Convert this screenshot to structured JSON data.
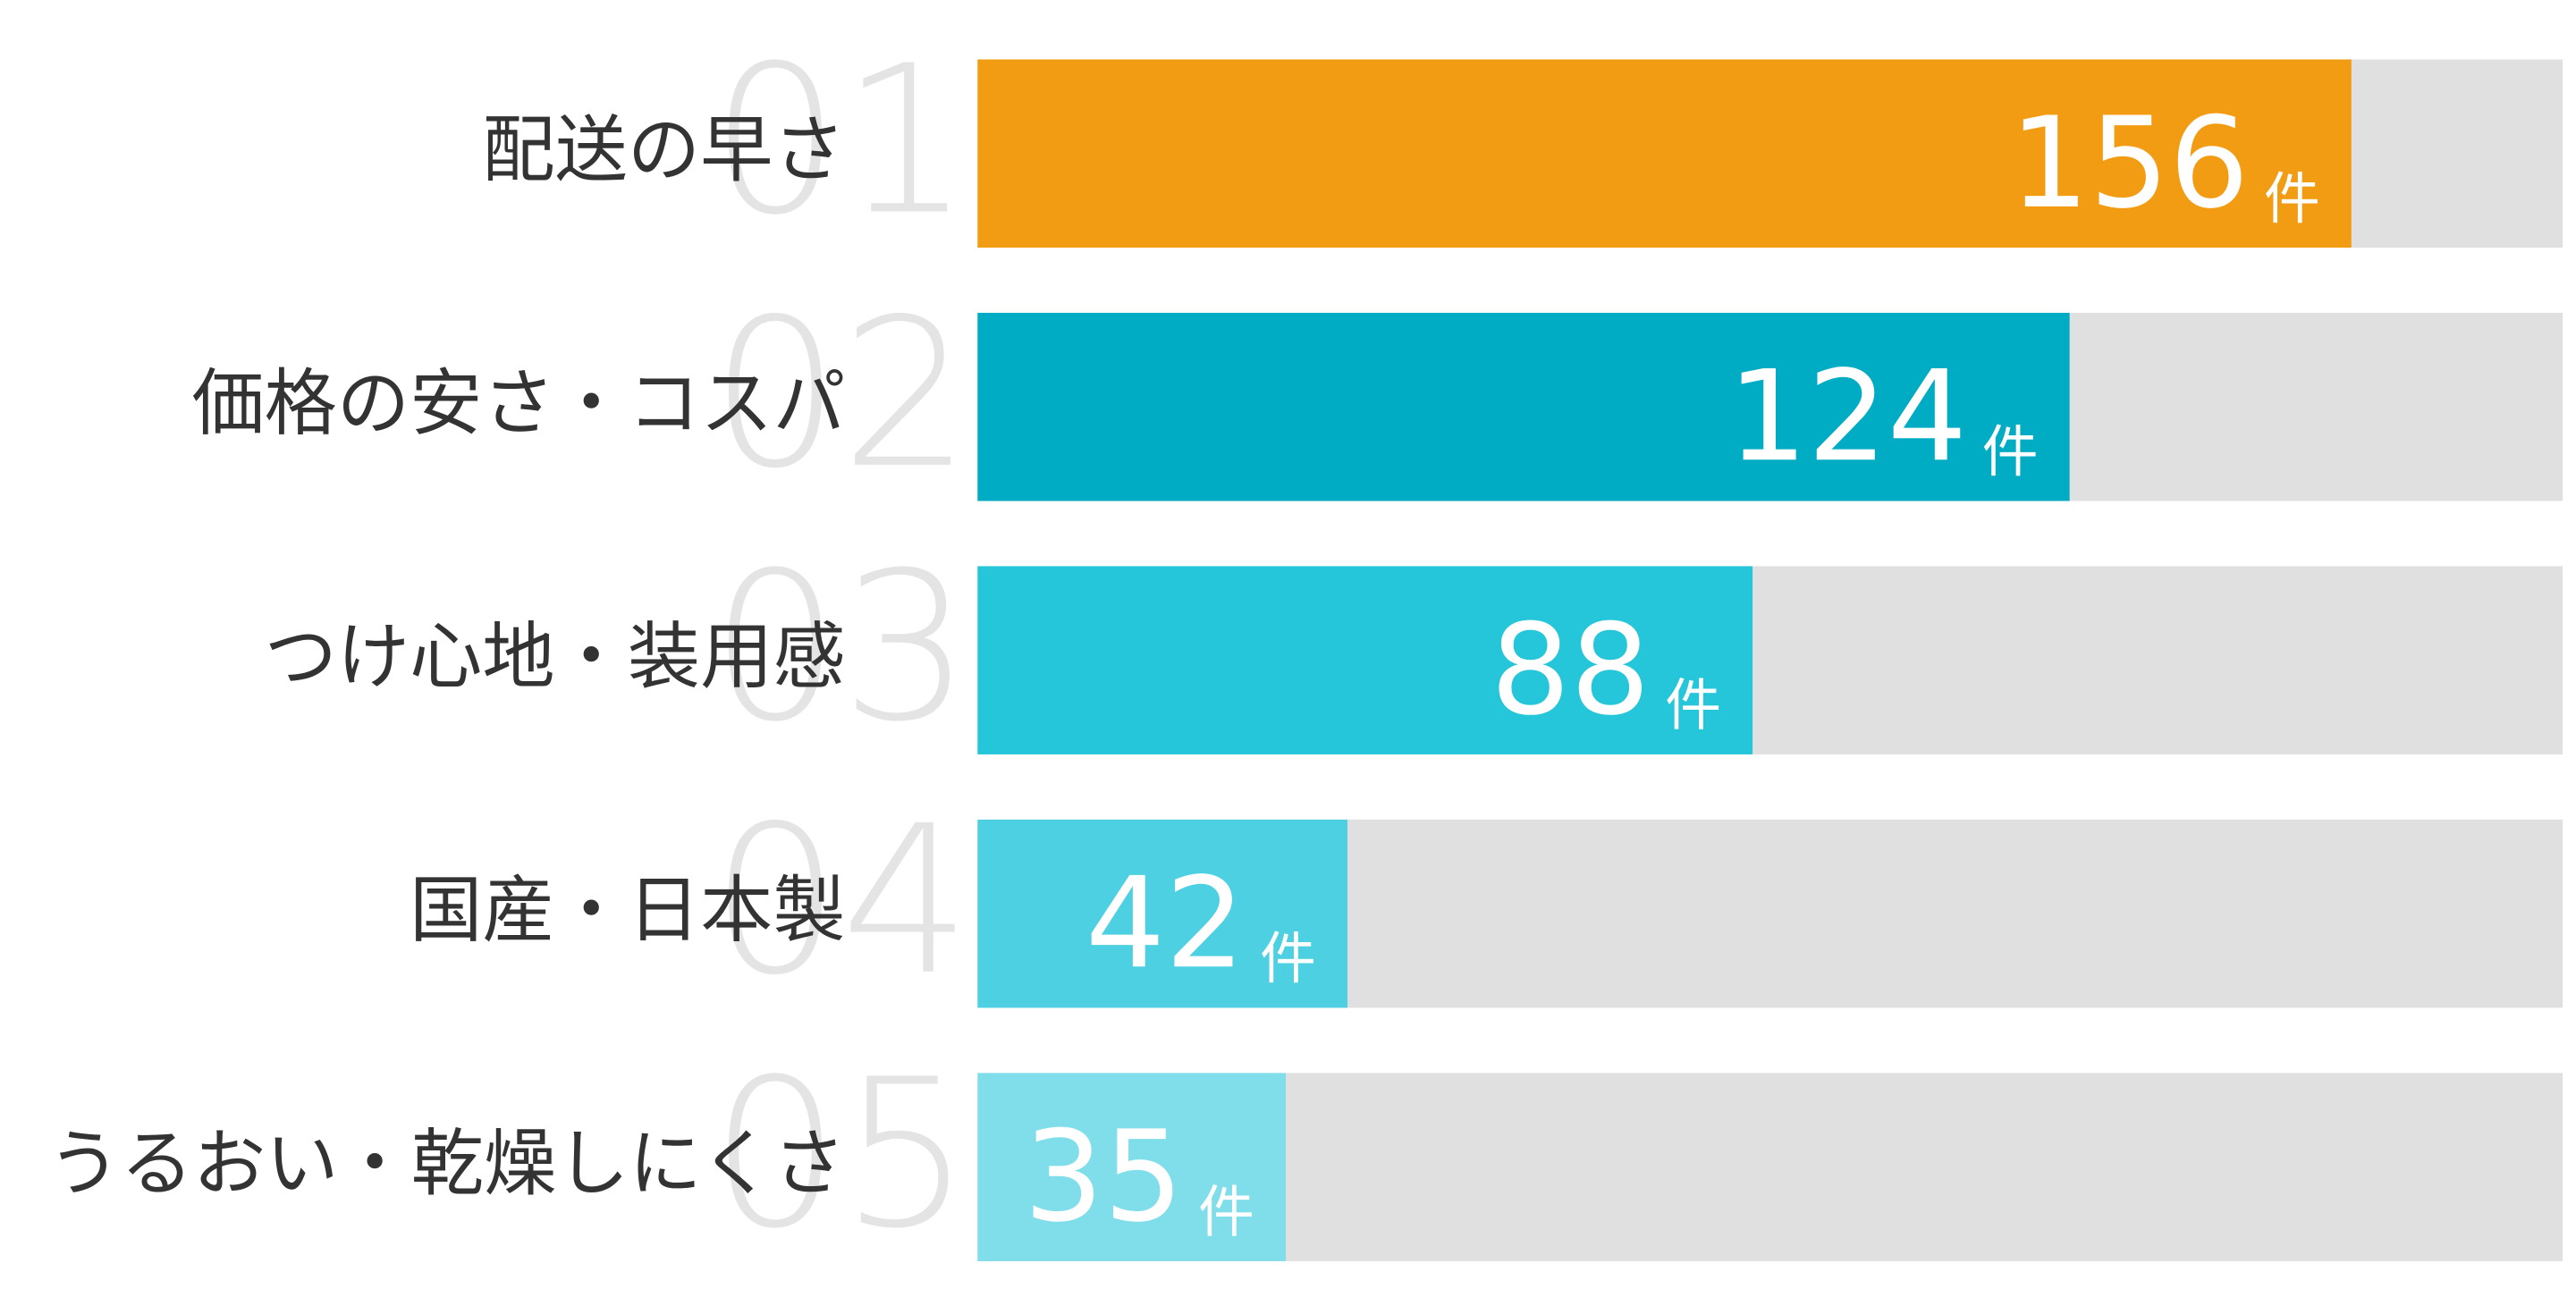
{
  "chart_data": {
    "type": "bar",
    "orientation": "horizontal",
    "ranks": [
      "01",
      "02",
      "03",
      "04",
      "05"
    ],
    "categories": [
      "配送の早さ",
      "価格の安さ・コスパ",
      "つけ心地・装用感",
      "国産・日本製",
      "うるおい・乾燥しにくさ"
    ],
    "values": [
      156,
      124,
      88,
      42,
      35
    ],
    "unit": "件",
    "colors": [
      "#f29c14",
      "#00acc4",
      "#26c6da",
      "#4dd0e1",
      "#80deea"
    ],
    "track_color": "#e0e0e0",
    "xlim": [
      0,
      180
    ]
  }
}
